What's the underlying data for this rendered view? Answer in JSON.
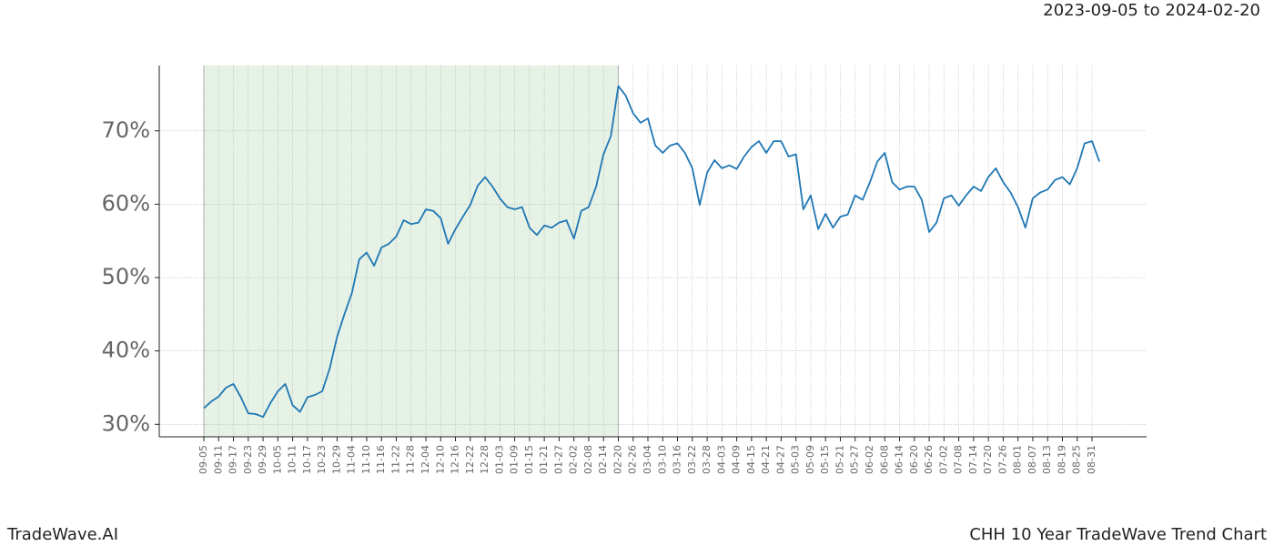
{
  "chart_data": {
    "type": "line",
    "subtitle": "2023-09-05 to 2024-02-20",
    "footer_left": "TradeWave.AI",
    "title": "CHH 10 Year TradeWave Trend Chart",
    "categories": [
      "09-05",
      null,
      "09-11",
      null,
      "09-17",
      null,
      "09-23",
      null,
      "09-29",
      null,
      "10-05",
      null,
      "10-11",
      null,
      "10-17",
      null,
      "10-23",
      null,
      "10-29",
      null,
      "11-04",
      null,
      "11-10",
      null,
      "11-16",
      null,
      "11-22",
      null,
      "11-28",
      null,
      "12-04",
      null,
      "12-10",
      null,
      "12-16",
      null,
      "12-22",
      null,
      "12-28",
      null,
      "01-03",
      null,
      "01-09",
      null,
      "01-15",
      null,
      "01-21",
      null,
      "01-27",
      null,
      "02-02",
      null,
      "02-08",
      null,
      "02-14",
      null,
      "02-20",
      null,
      "02-26",
      null,
      "03-04",
      null,
      "03-10",
      null,
      "03-16",
      null,
      "03-22",
      null,
      "03-28",
      null,
      "04-03",
      null,
      "04-09",
      null,
      "04-15",
      null,
      "04-21",
      null,
      "04-27",
      null,
      "05-03",
      null,
      "05-09",
      null,
      "05-15",
      null,
      "05-21",
      null,
      "05-27",
      null,
      "06-02",
      null,
      "06-08",
      null,
      "06-14",
      null,
      "06-20",
      null,
      "06-26",
      null,
      "07-02",
      null,
      "07-08",
      null,
      "07-14",
      null,
      "07-20",
      null,
      "07-26",
      null,
      "08-01",
      null,
      "08-07",
      null,
      "08-13",
      null,
      "08-19",
      null,
      "08-25",
      null,
      "08-31",
      null
    ],
    "series": [
      {
        "name": "CHH",
        "color": "#1f77b4",
        "values": [
          32.2,
          33.1,
          33.8,
          35.0,
          35.5,
          33.7,
          31.5,
          31.4,
          31.0,
          32.9,
          34.5,
          35.5,
          32.6,
          31.7,
          33.7,
          34.0,
          34.5,
          37.6,
          41.9,
          45.0,
          47.9,
          52.5,
          53.4,
          51.6,
          54.1,
          54.6,
          55.6,
          57.8,
          57.3,
          57.5,
          59.3,
          59.1,
          58.1,
          54.6,
          56.6,
          58.3,
          59.9,
          62.5,
          63.7,
          62.4,
          60.8,
          59.6,
          59.3,
          59.6,
          56.8,
          55.8,
          57.1,
          56.8,
          57.5,
          57.8,
          55.3,
          59.1,
          59.6,
          62.4,
          66.8,
          69.3,
          76.1,
          74.8,
          72.4,
          71.1,
          71.7,
          68.0,
          67.0,
          68.0,
          68.3,
          67.0,
          64.9,
          59.9,
          64.3,
          66.0,
          64.9,
          65.3,
          64.8,
          66.5,
          67.8,
          68.6,
          67.0,
          68.6,
          68.6,
          66.5,
          66.8,
          59.3,
          61.2,
          56.6,
          58.7,
          56.8,
          58.3,
          58.6,
          61.2,
          60.6,
          63.0,
          65.8,
          67.0,
          63.0,
          62.0,
          62.4,
          62.4,
          60.6,
          56.2,
          57.5,
          60.8,
          61.2,
          59.8,
          61.2,
          62.4,
          61.8,
          63.7,
          64.9,
          63.0,
          61.6,
          59.6,
          56.8,
          60.8,
          61.6,
          62.0,
          63.3,
          63.7,
          62.7,
          64.9,
          68.3,
          68.6,
          65.8
        ]
      }
    ],
    "ylim": [
      28.3,
      78.9
    ],
    "yticks": [
      {
        "value": 30,
        "label": "30%"
      },
      {
        "value": 40,
        "label": "40%"
      },
      {
        "value": 50,
        "label": "50%"
      },
      {
        "value": 60,
        "label": "60%"
      },
      {
        "value": 70,
        "label": "70%"
      }
    ],
    "shade_range": [
      "09-05",
      "02-20"
    ],
    "shade_color": "#e6f2e6",
    "grid": true
  }
}
